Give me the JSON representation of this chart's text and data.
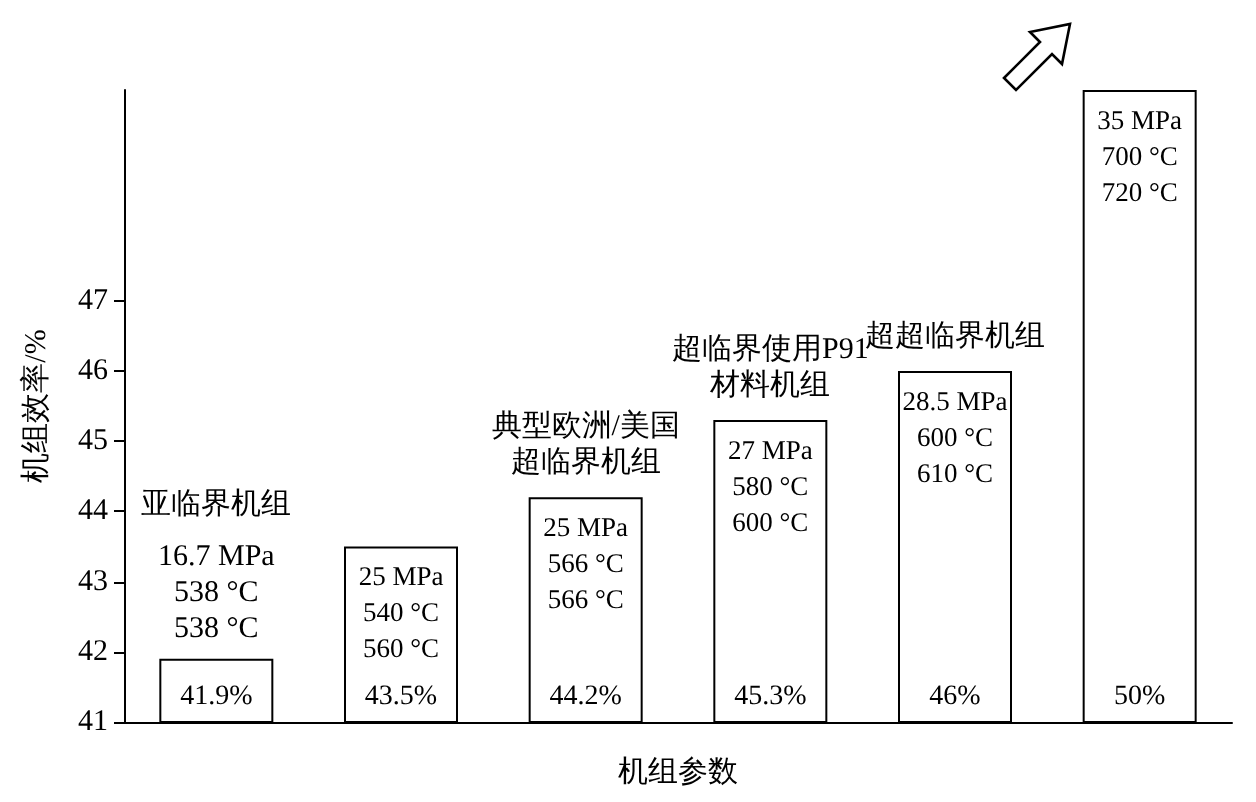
{
  "chart_data": {
    "type": "bar",
    "categories": [
      "亚临界机组",
      null,
      "典型欧洲/美国超临界机组",
      "超临界使用P91材料机组",
      "超超临界机组",
      null
    ],
    "values": [
      41.9,
      43.5,
      44.2,
      45.3,
      46,
      50
    ],
    "value_labels": [
      "41.9%",
      "43.5%",
      "44.2%",
      "45.3%",
      "46%",
      "50%"
    ],
    "color": "#ffffff",
    "xlabel": "机组参数",
    "ylabel": "机组效率/%",
    "ylim": [
      41,
      50
    ],
    "yticks": [
      41,
      42,
      43,
      44,
      45,
      46,
      47
    ],
    "annotations": [
      "16.7 MPa\n538 °C\n538 °C",
      "25 MPa\n540 °C\n560 °C",
      "25 MPa\n566 °C\n566 °C",
      "27 MPa\n580 °C\n600 °C",
      "28.5 MPa\n600 °C\n610 °C",
      "35 MPa\n700 °C\n720 °C"
    ],
    "tick_labels": "y",
    "grid": false
  }
}
